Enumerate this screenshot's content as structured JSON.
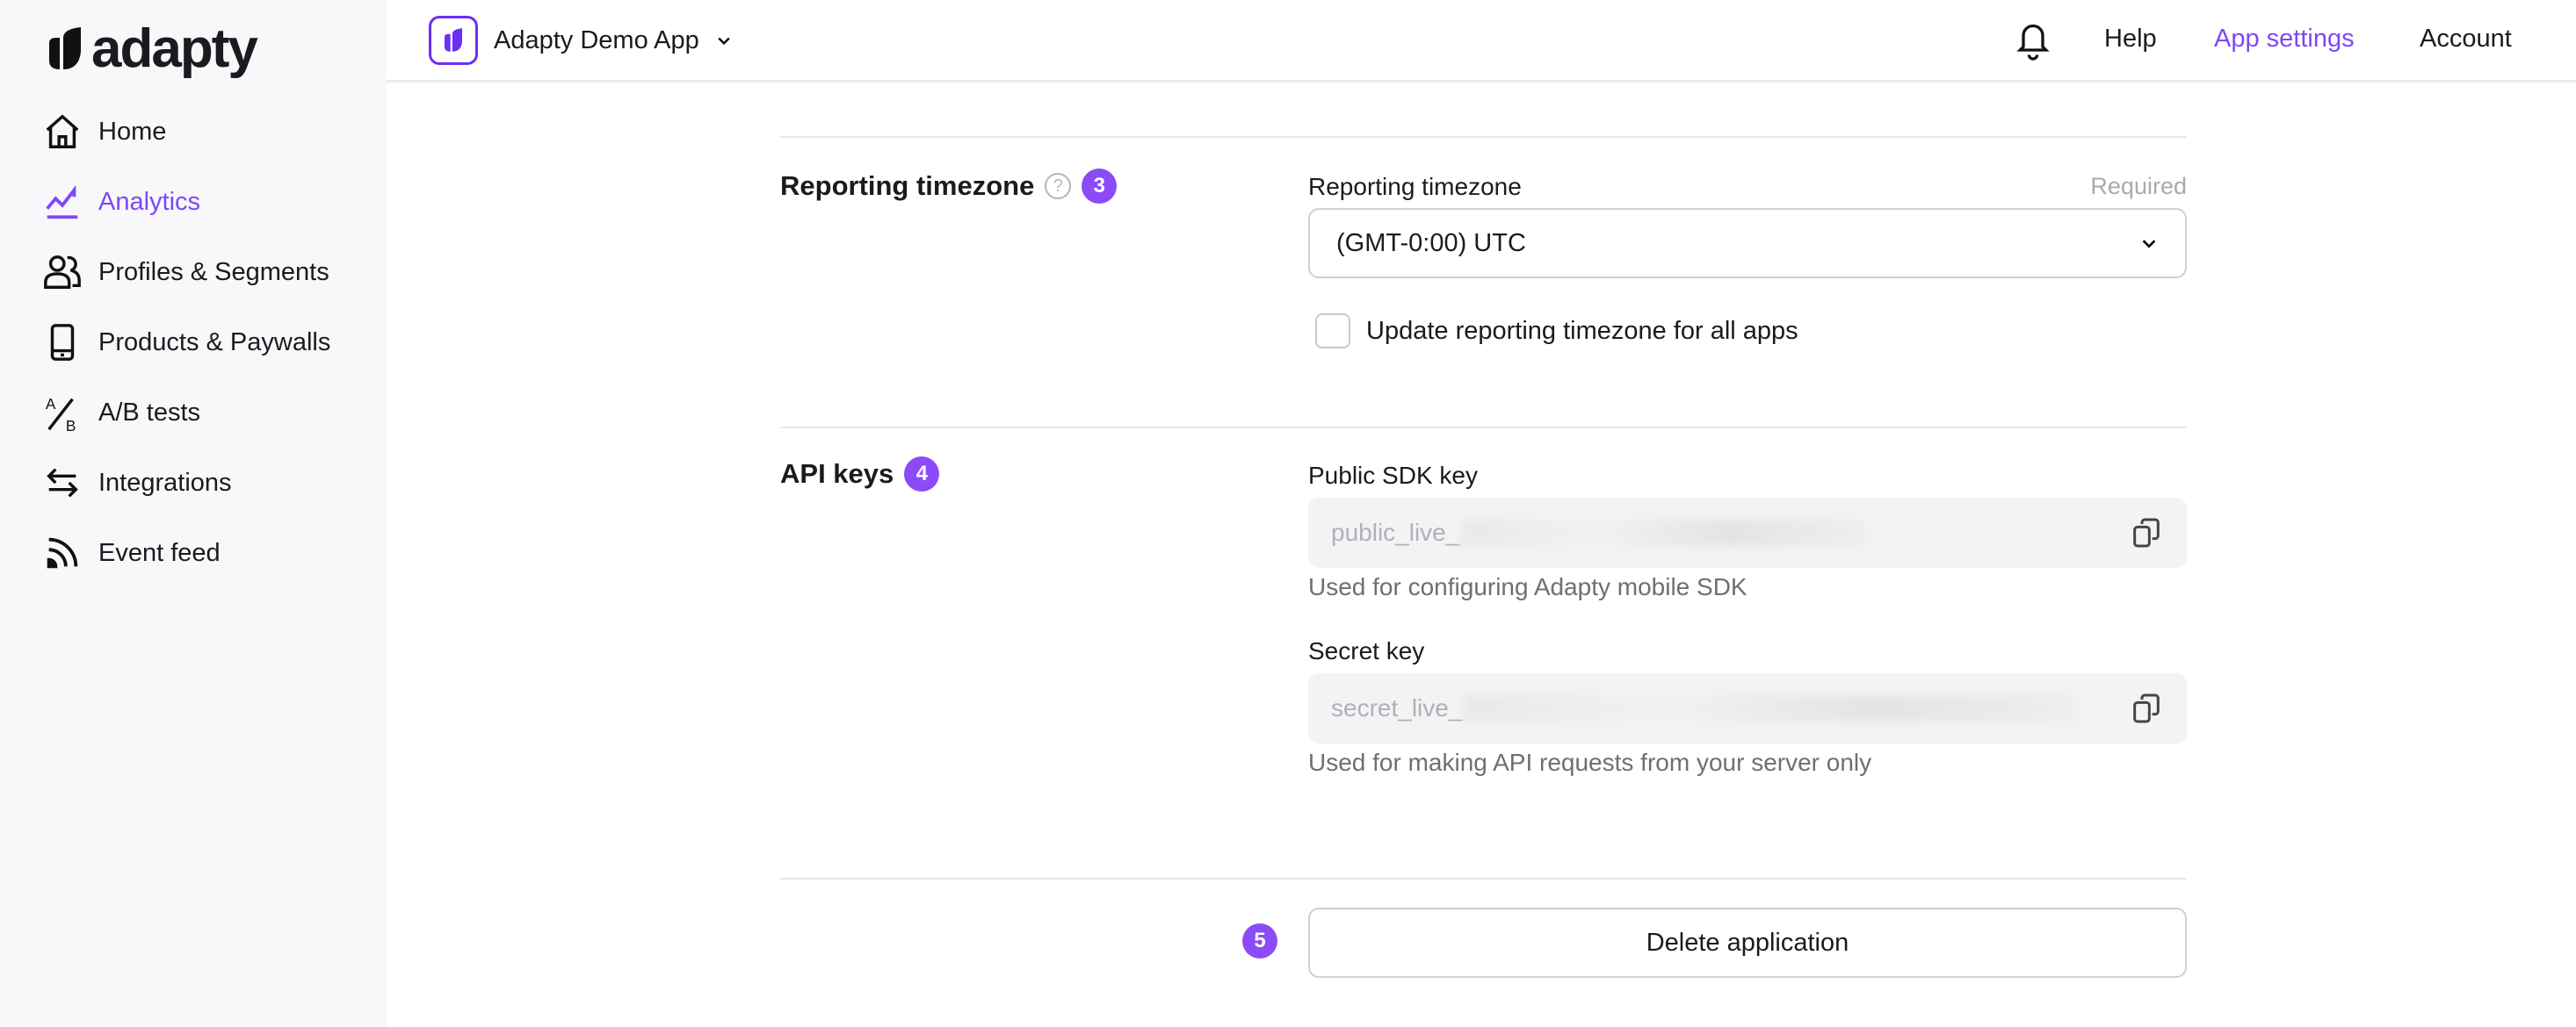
{
  "brand": {
    "name": "adapty",
    "accent": "#7f47f5"
  },
  "sidebar": {
    "items": [
      {
        "label": "Home",
        "icon": "home-icon",
        "active": false
      },
      {
        "label": "Analytics",
        "icon": "analytics-icon",
        "active": true
      },
      {
        "label": "Profiles & Segments",
        "icon": "profiles-icon",
        "active": false
      },
      {
        "label": "Products & Paywalls",
        "icon": "phone-icon",
        "active": false
      },
      {
        "label": "A/B tests",
        "icon": "ab-test-icon",
        "active": false
      },
      {
        "label": "Integrations",
        "icon": "integrations-icon",
        "active": false
      },
      {
        "label": "Event feed",
        "icon": "rss-icon",
        "active": false
      }
    ]
  },
  "header": {
    "app_name": "Adapty Demo App",
    "help": "Help",
    "app_settings": "App settings",
    "account": "Account"
  },
  "timezone": {
    "section_title": "Reporting timezone",
    "step": "3",
    "label": "Reporting timezone",
    "required": "Required",
    "value": "(GMT-0:00) UTC",
    "checkbox_label": "Update reporting timezone for all apps",
    "checked": false
  },
  "api_keys": {
    "section_title": "API keys",
    "step": "4",
    "public_label": "Public SDK key",
    "public_value": "public_live_",
    "public_help": "Used for configuring Adapty mobile SDK",
    "secret_label": "Secret key",
    "secret_value": "secret_live_",
    "secret_help": "Used for making API requests from your server only"
  },
  "delete": {
    "step": "5",
    "label": "Delete application"
  }
}
